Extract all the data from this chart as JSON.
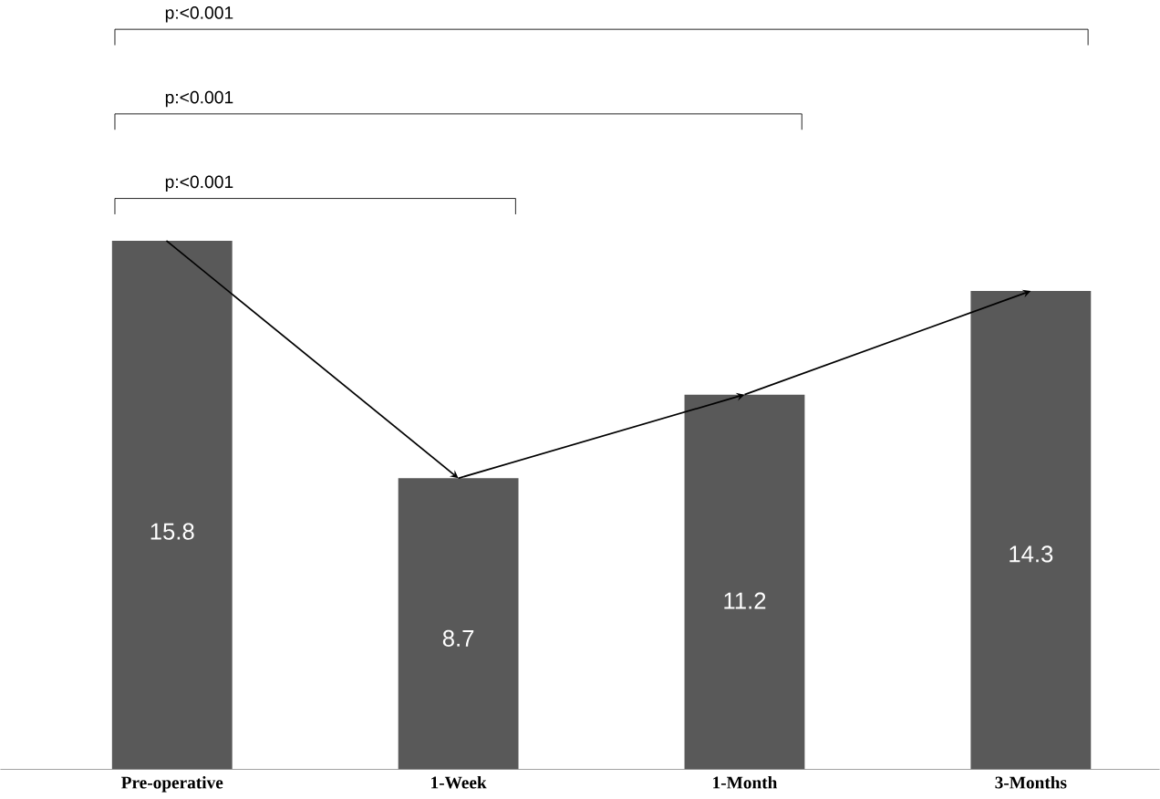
{
  "chart_data": {
    "type": "bar",
    "categories": [
      "Pre-operative",
      "1-Week",
      "1-Month",
      "3-Months"
    ],
    "values": [
      15.8,
      8.7,
      11.2,
      14.3
    ],
    "color": "#595959",
    "data_labels": true,
    "annotations": [
      "p:<0.001",
      "p:<0.001",
      "p:<0.001"
    ]
  }
}
